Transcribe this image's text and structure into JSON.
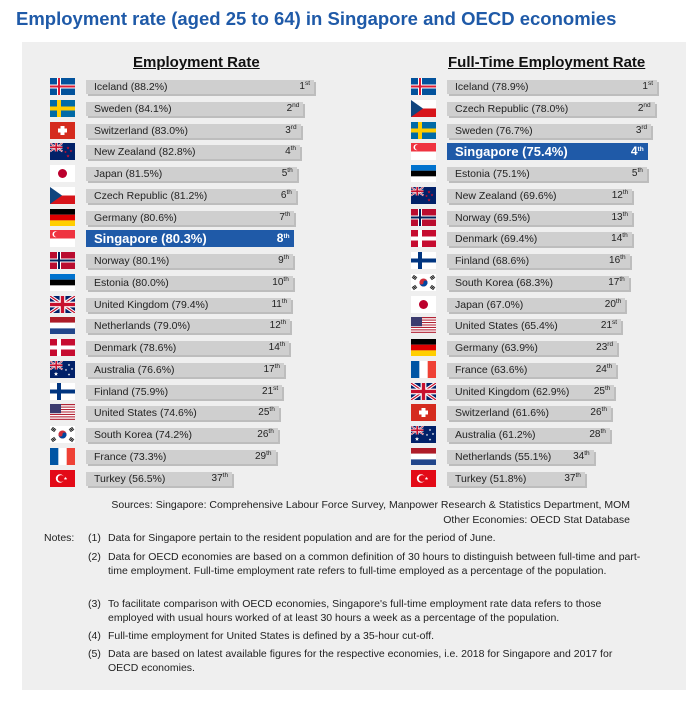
{
  "title": "Employment rate (aged 25 to 64) in Singapore and OECD economies",
  "chart_data": [
    {
      "type": "bar",
      "title": "Employment Rate",
      "highlight": "Singapore",
      "highlight_color": "#1f5aa8",
      "bar_color": "#cfcfcf",
      "unit": "%",
      "rows": [
        {
          "country": "Iceland",
          "value": 88.2,
          "label": "Iceland (88.2%)",
          "rank": "1",
          "rank_suffix": "st",
          "flag": "iceland"
        },
        {
          "country": "Sweden",
          "value": 84.1,
          "label": "Sweden (84.1%)",
          "rank": "2",
          "rank_suffix": "nd",
          "flag": "sweden"
        },
        {
          "country": "Switzerland",
          "value": 83.0,
          "label": "Switzerland (83.0%)",
          "rank": "3",
          "rank_suffix": "rd",
          "flag": "switzerland"
        },
        {
          "country": "New Zealand",
          "value": 82.8,
          "label": "New Zealand (82.8%)",
          "rank": "4",
          "rank_suffix": "th",
          "flag": "new-zealand"
        },
        {
          "country": "Japan",
          "value": 81.5,
          "label": "Japan (81.5%)",
          "rank": "5",
          "rank_suffix": "th",
          "flag": "japan"
        },
        {
          "country": "Czech Republic",
          "value": 81.2,
          "label": "Czech Republic (81.2%)",
          "rank": "6",
          "rank_suffix": "th",
          "flag": "czech"
        },
        {
          "country": "Germany",
          "value": 80.6,
          "label": "Germany (80.6%)",
          "rank": "7",
          "rank_suffix": "th",
          "flag": "germany"
        },
        {
          "country": "Singapore",
          "value": 80.3,
          "label": "Singapore (80.3%)",
          "rank": "8",
          "rank_suffix": "th",
          "flag": "singapore"
        },
        {
          "country": "Norway",
          "value": 80.1,
          "label": "Norway (80.1%)",
          "rank": "9",
          "rank_suffix": "th",
          "flag": "norway"
        },
        {
          "country": "Estonia",
          "value": 80.0,
          "label": "Estonia (80.0%)",
          "rank": "10",
          "rank_suffix": "th",
          "flag": "estonia"
        },
        {
          "country": "United Kingdom",
          "value": 79.4,
          "label": "United Kingdom (79.4%)",
          "rank": "11",
          "rank_suffix": "th",
          "flag": "uk"
        },
        {
          "country": "Netherlands",
          "value": 79.0,
          "label": "Netherlands (79.0%)",
          "rank": "12",
          "rank_suffix": "th",
          "flag": "netherlands"
        },
        {
          "country": "Denmark",
          "value": 78.6,
          "label": "Denmark (78.6%)",
          "rank": "14",
          "rank_suffix": "th",
          "flag": "denmark"
        },
        {
          "country": "Australia",
          "value": 76.6,
          "label": "Australia (76.6%)",
          "rank": "17",
          "rank_suffix": "th",
          "flag": "australia"
        },
        {
          "country": "Finland",
          "value": 75.9,
          "label": "Finland (75.9%)",
          "rank": "21",
          "rank_suffix": "st",
          "flag": "finland"
        },
        {
          "country": "United States",
          "value": 74.6,
          "label": "United States (74.6%)",
          "rank": "25",
          "rank_suffix": "th",
          "flag": "usa"
        },
        {
          "country": "South Korea",
          "value": 74.2,
          "label": "South Korea (74.2%)",
          "rank": "26",
          "rank_suffix": "th",
          "flag": "south-korea"
        },
        {
          "country": "France",
          "value": 73.3,
          "label": "France (73.3%)",
          "rank": "29",
          "rank_suffix": "th",
          "flag": "france"
        },
        {
          "country": "Turkey",
          "value": 56.5,
          "label": "Turkey (56.5%)",
          "rank": "37",
          "rank_suffix": "th",
          "flag": "turkey"
        }
      ]
    },
    {
      "type": "bar",
      "title": "Full-Time Employment Rate",
      "highlight": "Singapore",
      "highlight_color": "#1f5aa8",
      "bar_color": "#cfcfcf",
      "unit": "%",
      "rows": [
        {
          "country": "Iceland",
          "value": 78.9,
          "label": "Iceland (78.9%)",
          "rank": "1",
          "rank_suffix": "st",
          "flag": "iceland"
        },
        {
          "country": "Czech Republic",
          "value": 78.0,
          "label": "Czech Republic (78.0%)",
          "rank": "2",
          "rank_suffix": "nd",
          "flag": "czech"
        },
        {
          "country": "Sweden",
          "value": 76.7,
          "label": "Sweden (76.7%)",
          "rank": "3",
          "rank_suffix": "rd",
          "flag": "sweden"
        },
        {
          "country": "Singapore",
          "value": 75.4,
          "label": "Singapore (75.4%)",
          "rank": "4",
          "rank_suffix": "th",
          "flag": "singapore"
        },
        {
          "country": "Estonia",
          "value": 75.1,
          "label": "Estonia (75.1%)",
          "rank": "5",
          "rank_suffix": "th",
          "flag": "estonia"
        },
        {
          "country": "New Zealand",
          "value": 69.6,
          "label": "New Zealand (69.6%)",
          "rank": "12",
          "rank_suffix": "th",
          "flag": "new-zealand"
        },
        {
          "country": "Norway",
          "value": 69.5,
          "label": "Norway (69.5%)",
          "rank": "13",
          "rank_suffix": "th",
          "flag": "norway"
        },
        {
          "country": "Denmark",
          "value": 69.4,
          "label": "Denmark (69.4%)",
          "rank": "14",
          "rank_suffix": "th",
          "flag": "denmark"
        },
        {
          "country": "Finland",
          "value": 68.6,
          "label": "Finland (68.6%)",
          "rank": "16",
          "rank_suffix": "th",
          "flag": "finland"
        },
        {
          "country": "South Korea",
          "value": 68.3,
          "label": "South Korea (68.3%)",
          "rank": "17",
          "rank_suffix": "th",
          "flag": "south-korea"
        },
        {
          "country": "Japan",
          "value": 67.0,
          "label": "Japan (67.0%)",
          "rank": "20",
          "rank_suffix": "th",
          "flag": "japan"
        },
        {
          "country": "United States",
          "value": 65.4,
          "label": "United States (65.4%)",
          "rank": "21",
          "rank_suffix": "st",
          "flag": "usa"
        },
        {
          "country": "Germany",
          "value": 63.9,
          "label": "Germany (63.9%)",
          "rank": "23",
          "rank_suffix": "rd",
          "flag": "germany"
        },
        {
          "country": "France",
          "value": 63.6,
          "label": "France (63.6%)",
          "rank": "24",
          "rank_suffix": "th",
          "flag": "france"
        },
        {
          "country": "United Kingdom",
          "value": 62.9,
          "label": "United Kingdom (62.9%)",
          "rank": "25",
          "rank_suffix": "th",
          "flag": "uk"
        },
        {
          "country": "Switzerland",
          "value": 61.6,
          "label": "Switzerland (61.6%)",
          "rank": "26",
          "rank_suffix": "th",
          "flag": "switzerland"
        },
        {
          "country": "Australia",
          "value": 61.2,
          "label": "Australia (61.2%)",
          "rank": "28",
          "rank_suffix": "th",
          "flag": "australia"
        },
        {
          "country": "Netherlands",
          "value": 55.1,
          "label": "Netherlands (55.1%)",
          "rank": "34",
          "rank_suffix": "th",
          "flag": "netherlands"
        },
        {
          "country": "Turkey",
          "value": 51.8,
          "label": "Turkey (51.8%)",
          "rank": "37",
          "rank_suffix": "th",
          "flag": "turkey"
        }
      ]
    }
  ],
  "sources": {
    "line1": "Sources: Singapore: Comprehensive Labour Force Survey, Manpower Research & Statistics Department, MOM",
    "line2": "Other Economies: OECD Stat Database"
  },
  "notes": {
    "label": "Notes:",
    "items": [
      {
        "num": "(1)",
        "text": "Data for Singapore pertain to the resident population and are for the period of June."
      },
      {
        "num": "(2)",
        "text": "Data for OECD economies are based on a common definition of 30 hours to distinguish between full-time and part-time employment. Full-time employment rate refers to full-time employed as a percentage of the population."
      },
      {
        "num": "(3)",
        "text": "To facilitate comparison with OECD economies, Singapore's full-time employment rate data refers to those employed with usual hours worked of at least 30 hours a week as a percentage of the population."
      },
      {
        "num": "(4)",
        "text": "Full-time employment for United States is defined by a 35-hour cut-off."
      },
      {
        "num": "(5)",
        "text": "Data are based on latest available figures for the respective economies, i.e. 2018 for Singapore and 2017 for OECD economies."
      }
    ]
  }
}
